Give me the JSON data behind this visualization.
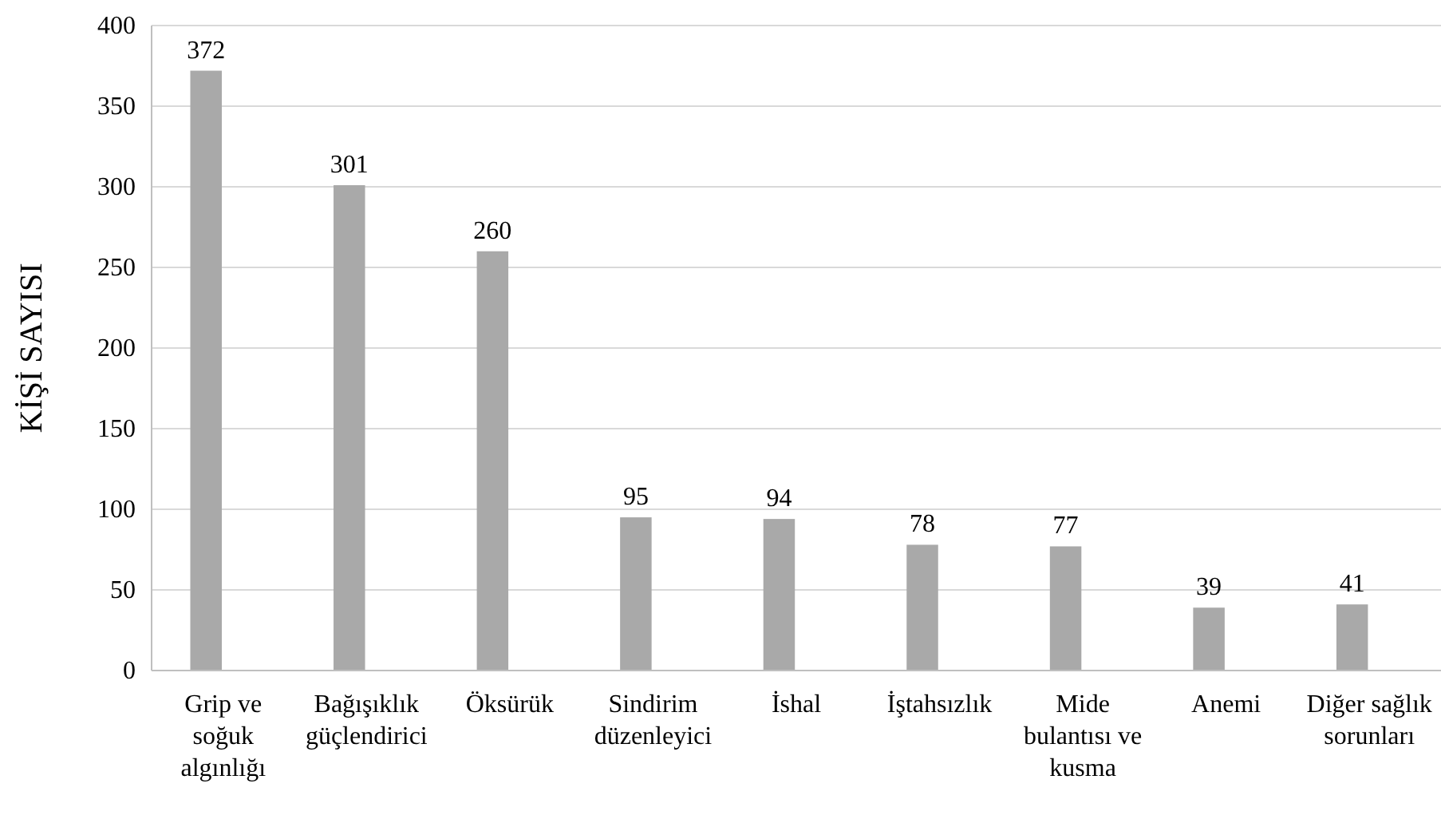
{
  "chart_data": {
    "type": "bar",
    "ylabel": "KİŞİ SAYISI",
    "categories": [
      "Grip ve soğuk algınlığı",
      "Bağışıklık güçlendirici",
      "Öksürük",
      "Sindirim düzenleyici",
      "İshal",
      "İştahsızlık",
      "Mide bulantısı ve kusma",
      "Anemi",
      "Diğer sağlık sorunları"
    ],
    "values": [
      372,
      301,
      260,
      95,
      94,
      78,
      77,
      39,
      41
    ],
    "color": "#a9a9a9",
    "ylim": [
      0,
      400
    ],
    "yticks": [
      0,
      50,
      100,
      150,
      200,
      250,
      300,
      350,
      400
    ],
    "grid": "y",
    "data_labels": true
  }
}
